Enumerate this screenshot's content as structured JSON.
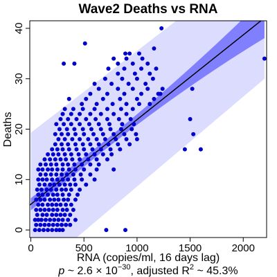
{
  "chart_data": {
    "type": "scatter",
    "title": "Wave2 Deaths vs RNA",
    "xlabel": "RNA (copies/ml, 16 days lag)",
    "ylabel": "Deaths",
    "stats": {
      "p_prefix": "p",
      "p_mid": " ~ 2.6 × 10",
      "p_exp": "−30",
      "r_mid": ", adjusted R",
      "r_exp": "2",
      "r_val": " ~ 45.3%"
    },
    "xlim": [
      -10,
      2220
    ],
    "ylim": [
      -1.5,
      41.5
    ],
    "xticks": [
      0,
      500,
      1000,
      1500,
      2000
    ],
    "yticks": [
      0,
      10,
      20,
      30,
      40
    ],
    "colors": {
      "points": "#0000cc",
      "fit_line": "#000000",
      "confidence_band": "#8080ff",
      "prediction_band": "#dcdcff"
    },
    "fit": {
      "intercept": 5.1,
      "slope": 0.0168
    },
    "confidence_band": {
      "at_x0": [
        3.9,
        6.3
      ],
      "at_x2200": [
        38.5,
        46.5
      ]
    },
    "prediction_band": {
      "at_x0": [
        -9.2,
        19.3
      ],
      "at_x2200": [
        30.0,
        55.0
      ]
    },
    "points": [
      [
        40,
        0
      ],
      [
        80,
        0
      ],
      [
        120,
        0
      ],
      [
        160,
        0
      ],
      [
        200,
        0
      ],
      [
        240,
        0
      ],
      [
        270,
        0
      ],
      [
        300,
        0
      ],
      [
        710,
        0
      ],
      [
        890,
        0
      ],
      [
        50,
        1
      ],
      [
        90,
        1
      ],
      [
        130,
        1
      ],
      [
        170,
        1
      ],
      [
        210,
        1
      ],
      [
        250,
        1
      ],
      [
        290,
        1
      ],
      [
        330,
        1
      ],
      [
        370,
        1
      ],
      [
        40,
        2
      ],
      [
        70,
        2
      ],
      [
        100,
        2
      ],
      [
        140,
        2
      ],
      [
        180,
        2
      ],
      [
        220,
        2
      ],
      [
        260,
        2
      ],
      [
        300,
        2
      ],
      [
        350,
        2
      ],
      [
        420,
        2
      ],
      [
        60,
        3
      ],
      [
        110,
        3
      ],
      [
        150,
        3
      ],
      [
        200,
        3
      ],
      [
        240,
        3
      ],
      [
        280,
        3
      ],
      [
        320,
        3
      ],
      [
        370,
        3
      ],
      [
        50,
        4
      ],
      [
        90,
        4
      ],
      [
        130,
        4
      ],
      [
        170,
        4
      ],
      [
        210,
        4
      ],
      [
        250,
        4
      ],
      [
        300,
        4
      ],
      [
        340,
        4
      ],
      [
        400,
        4
      ],
      [
        70,
        5
      ],
      [
        110,
        5
      ],
      [
        160,
        5
      ],
      [
        200,
        5
      ],
      [
        240,
        5
      ],
      [
        280,
        5
      ],
      [
        330,
        5
      ],
      [
        380,
        5
      ],
      [
        50,
        6
      ],
      [
        90,
        6
      ],
      [
        130,
        6
      ],
      [
        180,
        6
      ],
      [
        220,
        6
      ],
      [
        260,
        6
      ],
      [
        310,
        6
      ],
      [
        350,
        6
      ],
      [
        420,
        6
      ],
      [
        70,
        7
      ],
      [
        110,
        7
      ],
      [
        160,
        7
      ],
      [
        210,
        7
      ],
      [
        250,
        7
      ],
      [
        300,
        7
      ],
      [
        360,
        7
      ],
      [
        440,
        7
      ],
      [
        60,
        8
      ],
      [
        100,
        8
      ],
      [
        150,
        8
      ],
      [
        190,
        8
      ],
      [
        240,
        8
      ],
      [
        290,
        8
      ],
      [
        330,
        8
      ],
      [
        380,
        8
      ],
      [
        460,
        8
      ],
      [
        80,
        9
      ],
      [
        130,
        9
      ],
      [
        180,
        9
      ],
      [
        220,
        9
      ],
      [
        270,
        9
      ],
      [
        320,
        9
      ],
      [
        370,
        9
      ],
      [
        420,
        9
      ],
      [
        520,
        9
      ],
      [
        70,
        10
      ],
      [
        110,
        10
      ],
      [
        150,
        10
      ],
      [
        200,
        10
      ],
      [
        250,
        10
      ],
      [
        300,
        10
      ],
      [
        350,
        10
      ],
      [
        410,
        10
      ],
      [
        480,
        10
      ],
      [
        600,
        10
      ],
      [
        90,
        11
      ],
      [
        140,
        11
      ],
      [
        190,
        11
      ],
      [
        240,
        11
      ],
      [
        290,
        11
      ],
      [
        340,
        11
      ],
      [
        400,
        11
      ],
      [
        470,
        11
      ],
      [
        560,
        11
      ],
      [
        70,
        12
      ],
      [
        110,
        12
      ],
      [
        160,
        12
      ],
      [
        200,
        12
      ],
      [
        250,
        12
      ],
      [
        300,
        12
      ],
      [
        360,
        12
      ],
      [
        420,
        12
      ],
      [
        500,
        12
      ],
      [
        620,
        12
      ],
      [
        780,
        12
      ],
      [
        90,
        13
      ],
      [
        140,
        13
      ],
      [
        190,
        13
      ],
      [
        240,
        13
      ],
      [
        300,
        13
      ],
      [
        350,
        13
      ],
      [
        410,
        13
      ],
      [
        480,
        13
      ],
      [
        560,
        13
      ],
      [
        640,
        13
      ],
      [
        130,
        14
      ],
      [
        180,
        14
      ],
      [
        230,
        14
      ],
      [
        280,
        14
      ],
      [
        330,
        14
      ],
      [
        390,
        14
      ],
      [
        460,
        14
      ],
      [
        540,
        14
      ],
      [
        620,
        14
      ],
      [
        720,
        14
      ],
      [
        160,
        15
      ],
      [
        210,
        15
      ],
      [
        260,
        15
      ],
      [
        320,
        15
      ],
      [
        380,
        15
      ],
      [
        450,
        15
      ],
      [
        520,
        15
      ],
      [
        600,
        15
      ],
      [
        680,
        15
      ],
      [
        760,
        15
      ],
      [
        200,
        16
      ],
      [
        250,
        16
      ],
      [
        300,
        16
      ],
      [
        360,
        16
      ],
      [
        430,
        16
      ],
      [
        500,
        16
      ],
      [
        580,
        16
      ],
      [
        660,
        16
      ],
      [
        750,
        16
      ],
      [
        840,
        16
      ],
      [
        1450,
        16
      ],
      [
        1600,
        16
      ],
      [
        230,
        17
      ],
      [
        290,
        17
      ],
      [
        350,
        17
      ],
      [
        420,
        17
      ],
      [
        490,
        17
      ],
      [
        560,
        17
      ],
      [
        640,
        17
      ],
      [
        730,
        17
      ],
      [
        820,
        17
      ],
      [
        930,
        17
      ],
      [
        260,
        18
      ],
      [
        320,
        18
      ],
      [
        390,
        18
      ],
      [
        460,
        18
      ],
      [
        540,
        18
      ],
      [
        620,
        18
      ],
      [
        700,
        18
      ],
      [
        800,
        18
      ],
      [
        900,
        18
      ],
      [
        1000,
        18
      ],
      [
        230,
        19
      ],
      [
        290,
        19
      ],
      [
        350,
        19
      ],
      [
        420,
        19
      ],
      [
        500,
        19
      ],
      [
        590,
        19
      ],
      [
        680,
        19
      ],
      [
        780,
        19
      ],
      [
        880,
        19
      ],
      [
        990,
        19
      ],
      [
        1530,
        19
      ],
      [
        270,
        20
      ],
      [
        340,
        20
      ],
      [
        410,
        20
      ],
      [
        490,
        20
      ],
      [
        570,
        20
      ],
      [
        660,
        20
      ],
      [
        750,
        20
      ],
      [
        850,
        20
      ],
      [
        950,
        20
      ],
      [
        240,
        21
      ],
      [
        310,
        21
      ],
      [
        380,
        21
      ],
      [
        460,
        21
      ],
      [
        550,
        21
      ],
      [
        640,
        21
      ],
      [
        740,
        21
      ],
      [
        860,
        21
      ],
      [
        970,
        21
      ],
      [
        280,
        22
      ],
      [
        350,
        22
      ],
      [
        430,
        22
      ],
      [
        520,
        22
      ],
      [
        610,
        22
      ],
      [
        720,
        22
      ],
      [
        830,
        22
      ],
      [
        940,
        22
      ],
      [
        1500,
        22
      ],
      [
        300,
        23
      ],
      [
        380,
        23
      ],
      [
        460,
        23
      ],
      [
        560,
        23
      ],
      [
        660,
        23
      ],
      [
        780,
        23
      ],
      [
        900,
        23
      ],
      [
        320,
        24
      ],
      [
        400,
        24
      ],
      [
        490,
        24
      ],
      [
        600,
        24
      ],
      [
        720,
        24
      ],
      [
        850,
        24
      ],
      [
        960,
        24
      ],
      [
        480,
        25
      ],
      [
        620,
        25
      ],
      [
        770,
        25
      ],
      [
        900,
        25
      ],
      [
        1020,
        25
      ],
      [
        1120,
        25
      ],
      [
        360,
        26
      ],
      [
        520,
        26
      ],
      [
        680,
        26
      ],
      [
        840,
        26
      ],
      [
        1000,
        26
      ],
      [
        1160,
        26
      ],
      [
        560,
        27
      ],
      [
        720,
        27
      ],
      [
        880,
        27
      ],
      [
        1040,
        27
      ],
      [
        1200,
        27
      ],
      [
        1220,
        27
      ],
      [
        1520,
        28
      ],
      [
        640,
        28
      ],
      [
        820,
        28
      ],
      [
        960,
        28
      ],
      [
        1100,
        28
      ],
      [
        1240,
        28
      ],
      [
        600,
        29
      ],
      [
        760,
        29
      ],
      [
        920,
        29
      ],
      [
        1080,
        29
      ],
      [
        700,
        30
      ],
      [
        860,
        30
      ],
      [
        1000,
        30
      ],
      [
        1150,
        30
      ],
      [
        820,
        31
      ],
      [
        980,
        31
      ],
      [
        1120,
        31
      ],
      [
        730,
        32
      ],
      [
        880,
        32
      ],
      [
        1040,
        32
      ],
      [
        1180,
        32
      ],
      [
        310,
        33
      ],
      [
        410,
        33
      ],
      [
        820,
        33
      ],
      [
        960,
        33
      ],
      [
        1100,
        33
      ],
      [
        780,
        34
      ],
      [
        900,
        34
      ],
      [
        1050,
        34
      ],
      [
        2200,
        34
      ],
      [
        890,
        35
      ],
      [
        930,
        35
      ],
      [
        1020,
        35
      ],
      [
        1160,
        36
      ],
      [
        510,
        37
      ],
      [
        1230,
        40
      ]
    ]
  }
}
